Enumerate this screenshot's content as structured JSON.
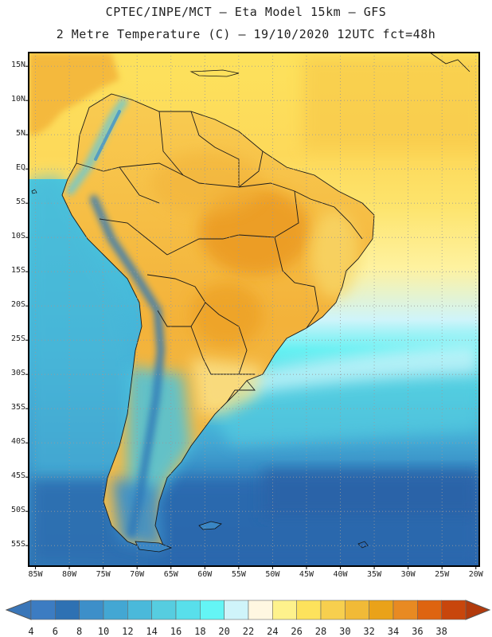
{
  "header": {
    "title_line1": "CPTEC/INPE/MCT –  Eta Model 15km – GFS",
    "title_line2": "2 Metre Temperature (C) – 19/10/2020 12UTC fct=48h"
  },
  "map": {
    "lat_labels": [
      "15N",
      "10N",
      "5N",
      "EQ",
      "5S",
      "10S",
      "15S",
      "20S",
      "25S",
      "30S",
      "35S",
      "40S",
      "45S",
      "50S",
      "55S"
    ],
    "lon_labels": [
      "85W",
      "80W",
      "75W",
      "70W",
      "65W",
      "60W",
      "55W",
      "50W",
      "45W",
      "40W",
      "35W",
      "30W",
      "25W",
      "20W"
    ],
    "colors": {
      "frame": "#000000",
      "gridline": "#9a9a9a",
      "country_border": "#1a1a1a"
    }
  },
  "colorbar": {
    "values": [
      "4",
      "6",
      "8",
      "10",
      "12",
      "14",
      "16",
      "18",
      "20",
      "22",
      "24",
      "26",
      "28",
      "30",
      "32",
      "34",
      "36",
      "38"
    ],
    "colors": [
      "#3c7cc2",
      "#2e71b3",
      "#3d8fc9",
      "#43a7d3",
      "#4ab9da",
      "#56cde0",
      "#58dfeb",
      "#64f5f5",
      "#cff4fa",
      "#fff7e1",
      "#fef28c",
      "#fde25c",
      "#f7cf4e",
      "#f1ba37",
      "#eaa219",
      "#e88a22",
      "#de6410",
      "#c8460c"
    ]
  }
}
